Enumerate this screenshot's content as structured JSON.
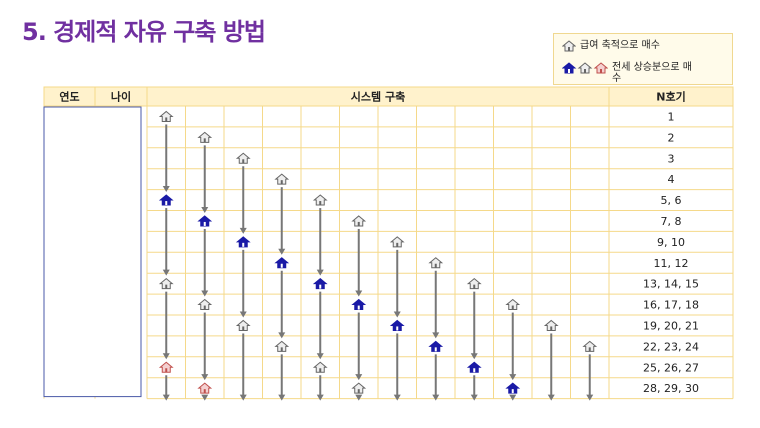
{
  "title": "5. 경제적 자유 구축 방법",
  "legend": {
    "items": [
      "급여 축적으로 매수",
      "전세 상승분으로 매수"
    ]
  },
  "table": {
    "headers": [
      "연도",
      "나이",
      "시스템 구축",
      "N호기"
    ],
    "rows": [
      "1",
      "2",
      "3",
      "4",
      "5, 6",
      "7, 8",
      "9, 10",
      "11, 12",
      "13, 14, 15",
      "16, 17, 18",
      "19, 20, 21",
      "22, 23, 24",
      "25, 26, 27",
      "28, 29, 30"
    ]
  }
}
